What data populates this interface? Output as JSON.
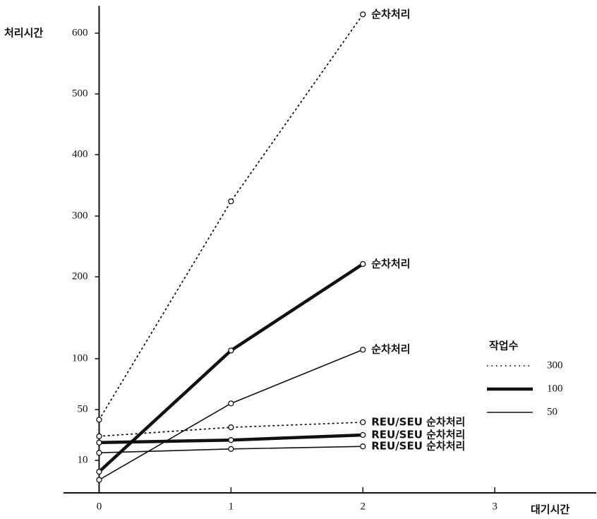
{
  "chart_data": {
    "type": "line",
    "y_label": "처리시간",
    "x_label": "대기시간",
    "x": [
      0,
      1,
      2
    ],
    "xlim": [
      -0.27,
      3.77
    ],
    "xticks": [
      0,
      1,
      2,
      3
    ],
    "ylim": [
      0,
      645
    ],
    "yticks": [
      10,
      50,
      100,
      200,
      300,
      400,
      500,
      600
    ],
    "y_scale": "piecewise",
    "markers": true,
    "legend": {
      "title": "작업수",
      "position": "right"
    },
    "series": [
      {
        "name": "300",
        "style": "dotted",
        "color": "#111",
        "values": [
          42,
          324,
          631
        ],
        "label": "순차처리",
        "reu_values": [
          29,
          36,
          40
        ],
        "reu_label": "REU/SEU 순차처리"
      },
      {
        "name": "100",
        "style": "thick",
        "color": "#111",
        "values": [
          6.5,
          110,
          221
        ],
        "label": "순차처리",
        "reu_values": [
          24,
          26,
          30
        ],
        "reu_label": "REU/SEU 순차처리"
      },
      {
        "name": "50",
        "style": "thin",
        "color": "#111",
        "values": [
          4,
          56,
          111
        ],
        "label": "순차처리",
        "reu_values": [
          16,
          19,
          21
        ],
        "reu_label": "REU/SEU 순차처리"
      }
    ]
  }
}
